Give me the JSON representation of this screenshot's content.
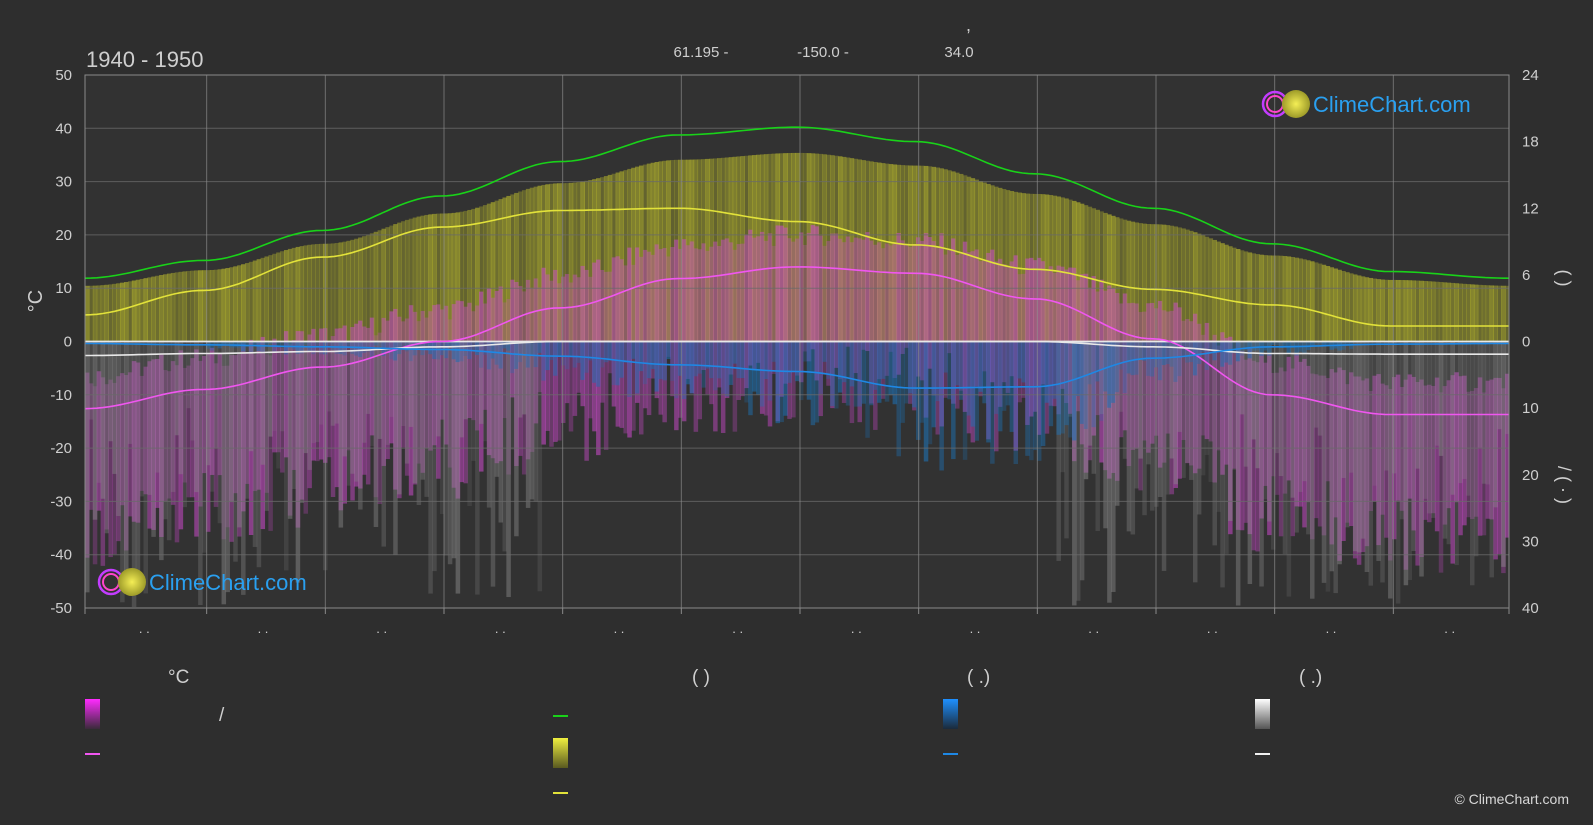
{
  "header": {
    "period": "1940 - 1950",
    "location_comma": ",",
    "lat": "61.195 -",
    "lon": "-150.0 -",
    "elev": "34.0"
  },
  "brand": {
    "name": "ClimeChart.com",
    "copyright": "© ClimeChart.com"
  },
  "colors": {
    "background": "#2e2e2e",
    "daylight": "#19d219",
    "sunshine": "#e2e23a",
    "max_temp": "#f056f0",
    "precip": "#1e88e5",
    "snow": "#e8e8e8",
    "temp_band": "#d24ad2",
    "sun_band": "#c8c828"
  },
  "chart_data": {
    "type": "line",
    "title": "",
    "ylabel_left": "°C",
    "ylim_left": [
      -50,
      50
    ],
    "yticks_left": [
      50,
      40,
      30,
      20,
      10,
      0,
      -10,
      -20,
      -30,
      -40,
      -50
    ],
    "ylabel_right_top": "( )",
    "ylim_right_top": [
      0,
      24
    ],
    "yticks_right_top": [
      24,
      18,
      12,
      6,
      0
    ],
    "ylabel_right_bottom": "/ ( · )",
    "ylim_right_bottom": [
      0,
      40
    ],
    "yticks_right_bottom": [
      10,
      20,
      30,
      40
    ],
    "x": [
      0,
      1,
      2,
      3,
      4,
      5,
      6,
      7,
      8,
      9,
      10,
      11,
      12
    ],
    "month_tick_labels": [
      ". .",
      ". .",
      ". .",
      ". .",
      ". .",
      ". .",
      ". .",
      ". .",
      ". .",
      ". .",
      ". .",
      ". ."
    ],
    "series": [
      {
        "key": "daylight",
        "axis": "right_top",
        "values": [
          5.7,
          7.3,
          10.0,
          13.1,
          16.2,
          18.6,
          19.3,
          18.0,
          15.1,
          12.0,
          8.8,
          6.3,
          5.7
        ]
      },
      {
        "key": "sunshine",
        "axis": "right_top",
        "values": [
          2.4,
          4.6,
          7.6,
          10.3,
          11.8,
          12.0,
          10.8,
          8.7,
          6.5,
          4.7,
          3.3,
          1.4,
          1.4
        ]
      },
      {
        "key": "max_temp",
        "axis": "left",
        "values": [
          -12.6,
          -9.0,
          -4.8,
          0.0,
          6.3,
          11.8,
          14.0,
          12.8,
          8.0,
          0.5,
          -10.0,
          -13.7,
          -13.7
        ]
      },
      {
        "key": "precip",
        "axis": "right_bottom",
        "values": [
          0.3,
          0.5,
          0.8,
          1.2,
          2.2,
          3.5,
          4.5,
          7.0,
          6.8,
          2.5,
          0.8,
          0.4,
          0.3
        ]
      },
      {
        "key": "snow",
        "axis": "right_bottom",
        "values": [
          2.1,
          1.8,
          1.5,
          0.8,
          0.0,
          0.0,
          0.0,
          0.0,
          0.0,
          0.8,
          1.8,
          1.9,
          1.9
        ]
      }
    ]
  },
  "legend": {
    "col1_title": "°C",
    "col1_row1_text": "/",
    "col2_title": "(            )",
    "col3_title": "(    .)",
    "col4_title": "(    .)"
  }
}
